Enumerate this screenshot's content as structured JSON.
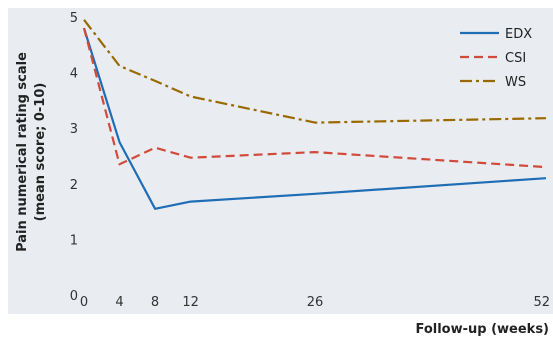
{
  "chart_data": {
    "type": "line",
    "title": "",
    "xlabel": "Follow-up (weeks)",
    "ylabel_line1": "Pain numerical rating scale",
    "ylabel_line2": "(mean score; 0-10)",
    "x": [
      0,
      4,
      8,
      12,
      26,
      52
    ],
    "x_ticks": [
      "0",
      "4",
      "8",
      "12",
      "26",
      "52"
    ],
    "y_ticks": [
      "0",
      "1",
      "2",
      "3",
      "4",
      "5"
    ],
    "xlim": [
      0,
      52
    ],
    "ylim": [
      0,
      5
    ],
    "grid": false,
    "legend_position": "top-right",
    "background": "#e9edf1",
    "series": [
      {
        "name": "EDX",
        "color": "#1f6db5",
        "dash": "solid",
        "values": [
          4.8,
          2.75,
          1.55,
          1.68,
          1.82,
          2.1
        ]
      },
      {
        "name": "CSI",
        "color": "#d24a3a",
        "dash": "dashed",
        "values": [
          4.8,
          2.35,
          2.65,
          2.47,
          2.57,
          2.3
        ]
      },
      {
        "name": "WS",
        "color": "#9a6a00",
        "dash": "dashdot",
        "values": [
          4.95,
          4.12,
          3.85,
          3.57,
          3.1,
          3.18
        ]
      }
    ]
  }
}
